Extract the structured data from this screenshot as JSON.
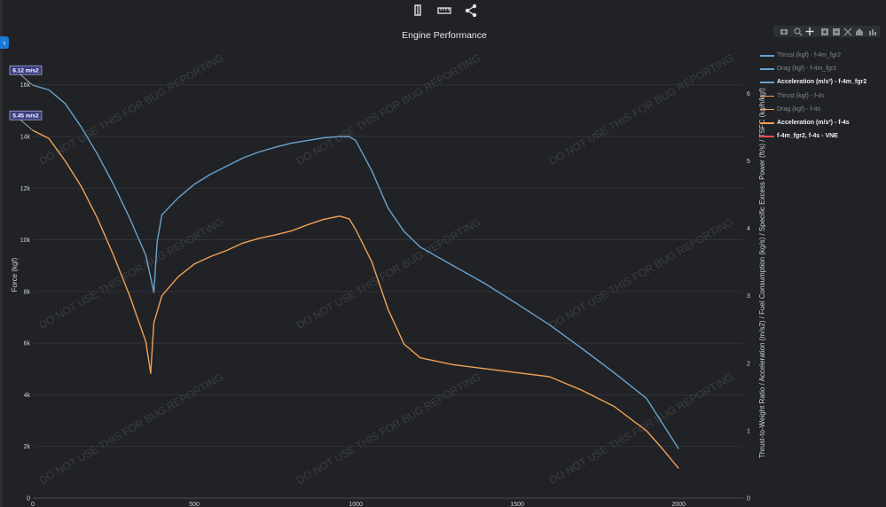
{
  "toolbar": {
    "items": [
      {
        "icon": "bookmark-icon"
      },
      {
        "icon": "ruler-icon"
      },
      {
        "icon": "share-icon"
      }
    ]
  },
  "modebar": {
    "items": [
      "camera-icon",
      "zoom-icon",
      "pan-icon",
      "zoom-in-icon",
      "zoom-out-icon",
      "autoscale-icon",
      "reset-axes-icon",
      "plotly-logo-icon"
    ]
  },
  "watermark": "DO NOT USE THIS FOR BUG REPORTING",
  "chart_data": {
    "type": "line",
    "title": "Engine Performance",
    "xlabel": "",
    "ylabel": "Force (kgf)",
    "y2label": "Thrust-to-Weight Ratio / Acceleration (m/s2) / Fuel Consumption (kg/s) / Specific Excess Power (ft/s) / TSFC (kg/h/kgf)",
    "xlim": [
      0,
      2200
    ],
    "ylim": [
      0,
      17500
    ],
    "y2lim": [
      0,
      6.7
    ],
    "xticks": [
      0,
      500,
      1000,
      1500,
      2000
    ],
    "xtick_labels": [
      "0",
      "500",
      "1000",
      "1500",
      "2000"
    ],
    "yticks": [
      0,
      2000,
      4000,
      6000,
      8000,
      10000,
      12000,
      14000,
      16000
    ],
    "ytick_labels": [
      "0",
      "2k",
      "4k",
      "6k",
      "8k",
      "10k",
      "12k",
      "14k",
      "16k"
    ],
    "y2ticks": [
      0,
      1,
      2,
      3,
      4,
      5,
      6
    ],
    "y2tick_labels": [
      "0",
      "1",
      "2",
      "3",
      "4",
      "5",
      "6"
    ],
    "grid": true,
    "legend_position": "right",
    "colors": {
      "blue": "#6aa2cc",
      "orange": "#f2a155",
      "red": "#e05050"
    },
    "legend": [
      {
        "label": "Thrust (kgf) - f-4m_fgr2",
        "color": "#6aa2cc",
        "visible": false
      },
      {
        "label": "Drag (kgf) - f-4m_fgr2",
        "color": "#6aa2cc",
        "visible": false
      },
      {
        "label": "Acceleration (m/s²) - f-4m_fgr2",
        "color": "#6aa2cc",
        "visible": true
      },
      {
        "label": "Thrust (kgf) - f-4s",
        "color": "#f2a155",
        "visible": false
      },
      {
        "label": "Drag (kgf) - f-4s",
        "color": "#f2a155",
        "visible": false
      },
      {
        "label": "Acceleration (m/s²) - f-4s",
        "color": "#f2a155",
        "visible": true
      },
      {
        "label": "f-4m_fgr2, f-4s - VNE",
        "color": "#e05050",
        "visible": true
      }
    ],
    "series": [
      {
        "name": "Acceleration (m/s²) - f-4m_fgr2",
        "color": "#6aa2cc",
        "axis": "y2",
        "x": [
          0,
          50,
          100,
          150,
          200,
          250,
          300,
          350,
          375,
          385,
          400,
          450,
          500,
          550,
          600,
          650,
          700,
          750,
          800,
          850,
          900,
          950,
          980,
          1000,
          1050,
          1100,
          1150,
          1200,
          1300,
          1400,
          1500,
          1600,
          1700,
          1800,
          1900,
          2000
        ],
        "values": [
          6.12,
          6.05,
          5.85,
          5.5,
          5.1,
          4.65,
          4.15,
          3.6,
          3.05,
          3.8,
          4.2,
          4.45,
          4.65,
          4.8,
          4.92,
          5.04,
          5.13,
          5.2,
          5.26,
          5.3,
          5.34,
          5.36,
          5.36,
          5.3,
          4.85,
          4.3,
          3.95,
          3.72,
          3.45,
          3.18,
          2.88,
          2.57,
          2.22,
          1.86,
          1.48,
          0.73
        ]
      },
      {
        "name": "Acceleration (m/s²) - f-4s",
        "color": "#f2a155",
        "axis": "y2",
        "x": [
          0,
          50,
          100,
          150,
          200,
          250,
          300,
          350,
          365,
          375,
          400,
          450,
          500,
          550,
          600,
          650,
          700,
          750,
          800,
          850,
          900,
          950,
          980,
          1000,
          1050,
          1100,
          1150,
          1200,
          1300,
          1400,
          1500,
          1600,
          1700,
          1800,
          1900,
          1950,
          2000
        ],
        "values": [
          5.45,
          5.33,
          5.0,
          4.62,
          4.15,
          3.6,
          3.0,
          2.32,
          1.85,
          2.6,
          3.0,
          3.28,
          3.47,
          3.58,
          3.67,
          3.78,
          3.85,
          3.9,
          3.96,
          4.05,
          4.13,
          4.18,
          4.14,
          3.98,
          3.5,
          2.8,
          2.28,
          2.08,
          1.98,
          1.92,
          1.86,
          1.8,
          1.6,
          1.36,
          1.0,
          0.73,
          0.44
        ]
      }
    ],
    "annotations": [
      {
        "text": "6.12 m/s2",
        "x": 0,
        "value": 6.12,
        "series": 0
      },
      {
        "text": "5.45 m/s2",
        "x": 0,
        "value": 5.45,
        "series": 1
      }
    ]
  }
}
